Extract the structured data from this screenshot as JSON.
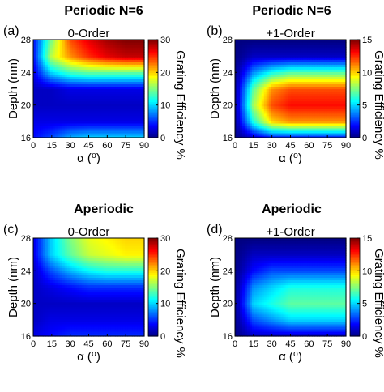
{
  "chart_data": [
    {
      "type": "heatmap",
      "panel": "(a)",
      "title": "Periodic N=6",
      "subtitle": "0-Order",
      "xlabel": "α (⁰)",
      "ylabel": "Depth (nm)",
      "colorbar_label": "Grating Efficiency %",
      "x_ticks": [
        0,
        15,
        30,
        45,
        60,
        75,
        90
      ],
      "y_ticks": [
        16,
        20,
        24,
        28
      ],
      "colorbar_ticks": [
        0,
        10,
        20,
        30
      ],
      "xlim": [
        0,
        90
      ],
      "ylim": [
        16,
        28
      ],
      "zlim": [
        0,
        30
      ],
      "colormap": "jet",
      "x": [
        0,
        15,
        30,
        45,
        60,
        75,
        90
      ],
      "y": [
        16,
        18,
        20,
        22,
        24,
        26,
        28
      ],
      "z": [
        [
          4,
          6,
          9,
          10,
          10,
          10,
          10
        ],
        [
          3,
          3,
          3,
          3,
          3,
          3,
          3
        ],
        [
          2,
          2,
          2,
          2,
          2,
          2,
          2
        ],
        [
          2,
          2,
          3,
          3,
          3,
          3,
          3
        ],
        [
          3,
          10,
          13,
          14,
          14,
          14,
          14
        ],
        [
          4,
          17,
          22,
          25,
          27,
          28,
          28
        ],
        [
          4,
          15,
          24,
          27,
          29,
          30,
          30
        ]
      ]
    },
    {
      "type": "heatmap",
      "panel": "(b)",
      "title": "Periodic N=6",
      "subtitle": "+1-Order",
      "xlabel": "α (⁰)",
      "ylabel": "Depth (nm)",
      "colorbar_label": "Grating Efficiency %",
      "x_ticks": [
        0,
        15,
        30,
        45,
        60,
        75,
        90
      ],
      "y_ticks": [
        16,
        20,
        24,
        28
      ],
      "colorbar_ticks": [
        0,
        5,
        10,
        15
      ],
      "xlim": [
        0,
        90
      ],
      "ylim": [
        16,
        28
      ],
      "zlim": [
        0,
        15
      ],
      "colormap": "jet",
      "x": [
        0,
        15,
        30,
        45,
        60,
        75,
        90
      ],
      "y": [
        16,
        18,
        20,
        22,
        24,
        26,
        28
      ],
      "z": [
        [
          0,
          1,
          2,
          2,
          2,
          2,
          2
        ],
        [
          0,
          6,
          10,
          11,
          11,
          11,
          11
        ],
        [
          0,
          8,
          12,
          13,
          13,
          13,
          13
        ],
        [
          0,
          7,
          11,
          12,
          12,
          12,
          12
        ],
        [
          0,
          4,
          6,
          7,
          7,
          7,
          7
        ],
        [
          0,
          1,
          1,
          1,
          1,
          1,
          1
        ],
        [
          0,
          0,
          0,
          0,
          0,
          0,
          0
        ]
      ]
    },
    {
      "type": "heatmap",
      "panel": "(c)",
      "title": "Aperiodic",
      "subtitle": "0-Order",
      "xlabel": "α (⁰)",
      "ylabel": "Depth (nm)",
      "colorbar_label": "Grating Efficiency %",
      "x_ticks": [
        0,
        15,
        30,
        45,
        60,
        75,
        90
      ],
      "y_ticks": [
        16,
        20,
        24,
        28
      ],
      "colorbar_ticks": [
        0,
        10,
        20,
        30
      ],
      "xlim": [
        0,
        90
      ],
      "ylim": [
        16,
        28
      ],
      "zlim": [
        0,
        30
      ],
      "colormap": "jet",
      "x": [
        0,
        15,
        30,
        45,
        60,
        75,
        90
      ],
      "y": [
        16,
        18,
        20,
        22,
        24,
        26,
        28
      ],
      "z": [
        [
          3,
          4,
          5,
          5,
          5,
          5,
          5
        ],
        [
          2,
          3,
          3,
          3,
          3,
          3,
          3
        ],
        [
          2,
          2,
          2,
          2,
          2,
          2,
          2
        ],
        [
          2,
          3,
          4,
          5,
          5,
          5,
          5
        ],
        [
          2,
          6,
          9,
          11,
          12,
          12,
          12
        ],
        [
          3,
          10,
          14,
          17,
          18,
          19,
          19
        ],
        [
          3,
          10,
          15,
          18,
          19,
          20,
          20
        ]
      ]
    },
    {
      "type": "heatmap",
      "panel": "(d)",
      "title": "Aperiodic",
      "subtitle": "+1-Order",
      "xlabel": "α (⁰)",
      "ylabel": "Depth (nm)",
      "colorbar_label": "Grating Efficiency %",
      "x_ticks": [
        0,
        15,
        30,
        45,
        60,
        75,
        90
      ],
      "y_ticks": [
        16,
        20,
        24,
        28
      ],
      "colorbar_ticks": [
        0,
        5,
        10,
        15
      ],
      "xlim": [
        0,
        90
      ],
      "ylim": [
        16,
        28
      ],
      "zlim": [
        0,
        15
      ],
      "colormap": "jet",
      "x": [
        0,
        15,
        30,
        45,
        60,
        75,
        90
      ],
      "y": [
        16,
        18,
        20,
        22,
        24,
        26,
        28
      ],
      "z": [
        [
          0,
          1,
          1,
          1,
          1,
          1,
          1
        ],
        [
          0,
          3,
          4,
          5,
          5,
          5,
          5
        ],
        [
          0,
          5,
          6,
          7,
          7,
          7,
          7
        ],
        [
          0,
          4,
          5,
          6,
          6,
          6,
          6
        ],
        [
          0,
          2,
          3,
          3,
          3,
          3,
          3
        ],
        [
          0,
          1,
          1,
          1,
          1,
          1,
          1
        ],
        [
          0,
          0,
          0,
          0,
          0,
          0,
          0
        ]
      ]
    }
  ]
}
